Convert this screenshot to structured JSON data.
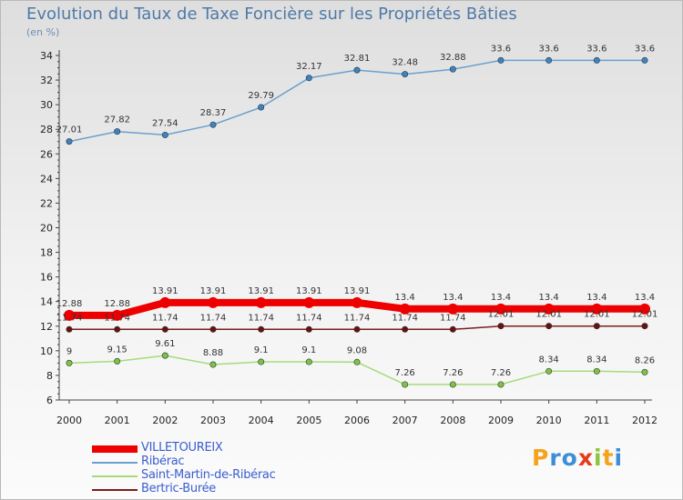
{
  "header": {
    "title": "Evolution du Taux de Taxe Foncière sur les Propriétés Bâties",
    "subtitle": "(en %)"
  },
  "logo": {
    "letters": [
      "P",
      "r",
      "o",
      "x",
      "i",
      "t",
      "i"
    ],
    "colors": [
      "#f5a31a",
      "#3c8ed6",
      "#3c8ed6",
      "#e63c1e",
      "#8cc63f",
      "#f5a31a",
      "#3c8ed6"
    ]
  },
  "chart_data": {
    "type": "line",
    "title": "Evolution du Taux de Taxe Foncière sur les Propriétés Bâties",
    "ylabel": "(en %)",
    "x": [
      "2000",
      "2001",
      "2002",
      "2003",
      "2004",
      "2005",
      "2006",
      "2007",
      "2008",
      "2009",
      "2010",
      "2011",
      "2012"
    ],
    "ylim": [
      6,
      34
    ],
    "yticks": [
      "6",
      "8",
      "10",
      "12",
      "14",
      "16",
      "18",
      "20",
      "22",
      "24",
      "26",
      "28",
      "30",
      "32",
      "34"
    ],
    "grid": false,
    "legend": "bottom-left",
    "series": [
      {
        "name": "Ribérac",
        "color": "#6aa0cf",
        "marker": "#3d83c4",
        "values": [
          27.01,
          27.82,
          27.54,
          28.37,
          29.79,
          32.17,
          32.81,
          32.48,
          32.88,
          33.6,
          33.6,
          33.6,
          33.6
        ],
        "labels": [
          "27.01",
          "27.82",
          "27.54",
          "28.37",
          "29.79",
          "32.17",
          "32.81",
          "32.48",
          "32.88",
          "33.6",
          "33.6",
          "33.6",
          "33.6"
        ]
      },
      {
        "name": "VILLETOUREIX",
        "color": "#ee0000",
        "marker": "#ee0000",
        "values": [
          12.88,
          12.88,
          13.91,
          13.91,
          13.91,
          13.91,
          13.91,
          13.4,
          13.4,
          13.4,
          13.4,
          13.4,
          13.4
        ],
        "labels": [
          "12.88",
          "12.88",
          "13.91",
          "13.91",
          "13.91",
          "13.91",
          "13.91",
          "13.4",
          "13.4",
          "13.4",
          "13.4",
          "13.4",
          "13.4"
        ]
      },
      {
        "name": "Bertric-Burée",
        "color": "#7a1e1e",
        "marker": "#6a1010",
        "values": [
          11.74,
          11.74,
          11.74,
          11.74,
          11.74,
          11.74,
          11.74,
          11.74,
          11.74,
          12.01,
          12.01,
          12.01,
          12.01
        ],
        "labels": [
          "11.74",
          "11.74",
          "11.74",
          "11.74",
          "11.74",
          "11.74",
          "11.74",
          "11.74",
          "11.74",
          "12.01",
          "12.01",
          "12.01",
          "12.01"
        ]
      },
      {
        "name": "Saint-Martin-de-Ribérac",
        "color": "#a6db7c",
        "marker": "#7cc440",
        "values": [
          9,
          9.15,
          9.61,
          8.88,
          9.1,
          9.1,
          9.08,
          7.26,
          7.26,
          7.26,
          8.34,
          8.34,
          8.26
        ],
        "labels": [
          "9",
          "9.15",
          "9.61",
          "8.88",
          "9.1",
          "9.1",
          "9.08",
          "7.26",
          "7.26",
          "7.26",
          "8.34",
          "8.34",
          "8.26"
        ]
      }
    ]
  },
  "legend": {
    "items": [
      {
        "label": "VILLETOUREIX",
        "color": "#ee0000",
        "width": 8
      },
      {
        "label": "Ribérac",
        "color": "#6aa0cf",
        "width": 2
      },
      {
        "label": "Saint-Martin-de-Ribérac",
        "color": "#a6db7c",
        "width": 2
      },
      {
        "label": "Bertric-Burée",
        "color": "#7a1e1e",
        "width": 2
      }
    ]
  }
}
